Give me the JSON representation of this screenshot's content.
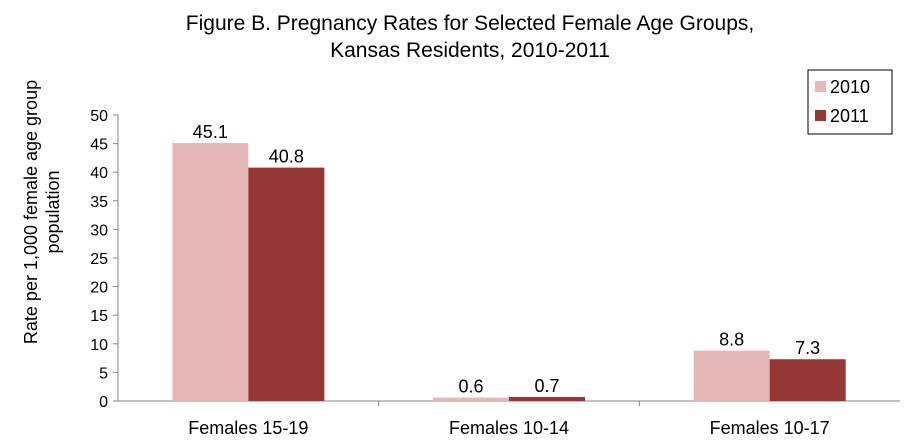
{
  "chart_data": {
    "type": "bar",
    "title_lines": [
      "Figure B. Pregnancy Rates for Selected Female Age Groups,",
      "Kansas Residents, 2010-2011"
    ],
    "ylabel_lines": [
      "Rate per 1,000 female age group",
      "population"
    ],
    "categories": [
      "Females 15-19",
      "Females 10-14",
      "Females 10-17"
    ],
    "series": [
      {
        "name": "2010",
        "values": [
          45.1,
          0.6,
          8.8
        ],
        "color": "#e6b8b7"
      },
      {
        "name": "2011",
        "values": [
          40.8,
          0.7,
          7.3
        ],
        "color": "#953735"
      }
    ],
    "value_labels": [
      [
        "45.1",
        "0.6",
        "8.8"
      ],
      [
        "40.8",
        "0.7",
        "7.3"
      ]
    ],
    "ylim": [
      0,
      50
    ],
    "yticks": [
      "0",
      "5",
      "10",
      "15",
      "20",
      "25",
      "30",
      "35",
      "40",
      "45",
      "50"
    ],
    "grid": false,
    "legend_position": "top-right"
  }
}
